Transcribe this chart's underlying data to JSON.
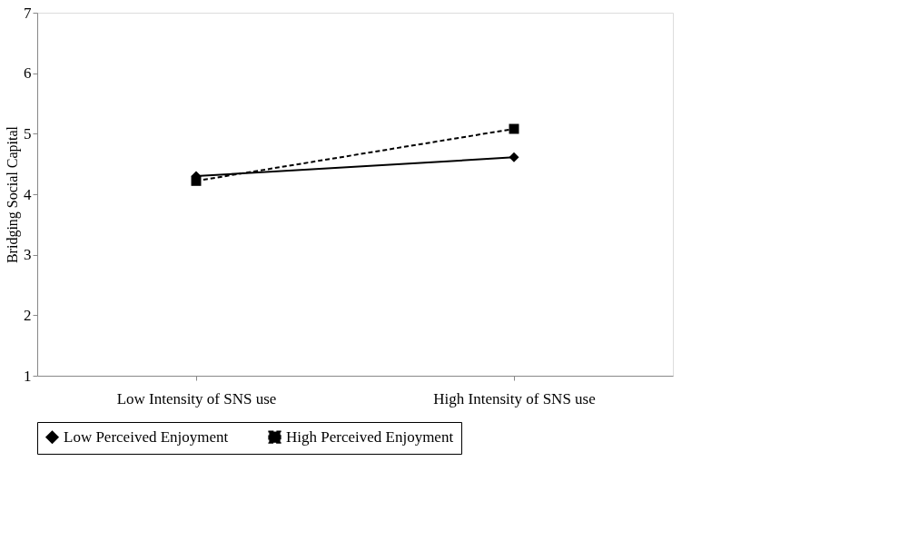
{
  "chart_data": {
    "type": "line",
    "ylabel": "Bridging Social Capital",
    "categories": [
      "Low Intensity of SNS use",
      "High Intensity of SNS use"
    ],
    "series": [
      {
        "name": "Low Perceived Enjoyment",
        "color": "#000000",
        "values": [
          4.3,
          4.61
        ],
        "marker": "diamond",
        "line_style": "solid"
      },
      {
        "name": "High Perceived Enjoyment",
        "color": "#000000",
        "values": [
          4.22,
          5.08
        ],
        "marker": "square",
        "line_style": "dashed"
      }
    ],
    "ylim": [
      1,
      7
    ],
    "yticks": [
      1,
      2,
      3,
      4,
      5,
      6,
      7
    ],
    "grid": false,
    "legend": "bottom"
  }
}
